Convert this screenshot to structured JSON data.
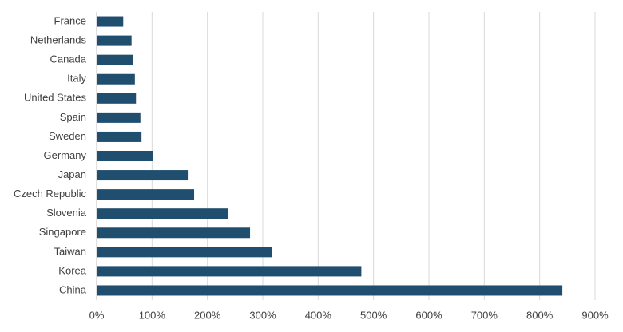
{
  "chart_data": {
    "type": "barh",
    "categories": [
      "France",
      "Netherlands",
      "Canada",
      "Italy",
      "United States",
      "Spain",
      "Sweden",
      "Germany",
      "Japan",
      "Czech Republic",
      "Slovenia",
      "Singapore",
      "Taiwan",
      "Korea",
      "China"
    ],
    "values": [
      48,
      63,
      66,
      69,
      71,
      79,
      81,
      101,
      166,
      176,
      238,
      277,
      316,
      478,
      841
    ],
    "color": "#1f4e6e",
    "xlim": [
      0,
      900
    ],
    "xticks": [
      {
        "value": 0,
        "label": "0%"
      },
      {
        "value": 100,
        "label": "100%"
      },
      {
        "value": 200,
        "label": "200%"
      },
      {
        "value": 300,
        "label": "300%"
      },
      {
        "value": 400,
        "label": "400%"
      },
      {
        "value": 500,
        "label": "500%"
      },
      {
        "value": 600,
        "label": "600%"
      },
      {
        "value": 700,
        "label": "700%"
      },
      {
        "value": 800,
        "label": "800%"
      },
      {
        "value": 900,
        "label": "900%"
      }
    ],
    "grid": true
  }
}
